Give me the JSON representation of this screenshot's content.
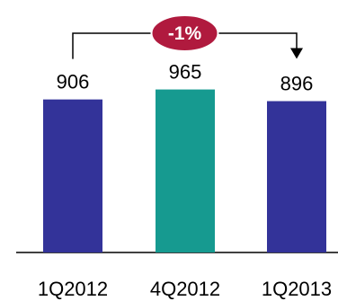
{
  "chart_data": {
    "type": "bar",
    "categories": [
      "1Q2012",
      "4Q2012",
      "1Q2013"
    ],
    "values": [
      906,
      965,
      896
    ],
    "data_labels": [
      "906",
      "965",
      "896"
    ],
    "ylim": [
      0,
      1000
    ],
    "grid": false,
    "legend": "none",
    "bar_colors": [
      "#333399",
      "#169a90",
      "#333399"
    ],
    "annotation": {
      "text": "-1%",
      "from_category": "1Q2012",
      "to_category": "1Q2013",
      "badge_color": "#b01a3e",
      "badge_text_color": "#ffffff"
    }
  }
}
